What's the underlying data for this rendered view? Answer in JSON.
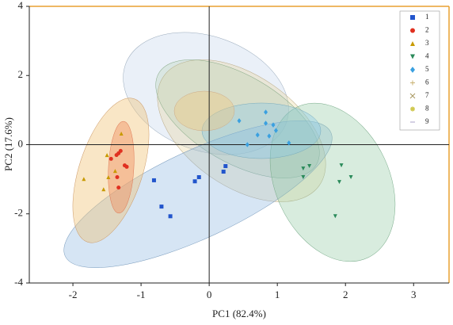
{
  "chart_data": {
    "type": "scatter",
    "xlabel": "PC1 (82.4%)",
    "ylabel": "PC2 (17.6%)",
    "xlim": [
      -2.64,
      3.52
    ],
    "ylim": [
      -4,
      4
    ],
    "xticks": [
      -2,
      -1,
      0,
      1,
      2,
      3
    ],
    "yticks": [
      -4,
      -2,
      0,
      2,
      4
    ],
    "series": [
      {
        "name": "1",
        "color": "#2255cc",
        "marker": "square",
        "x": [
          -0.81,
          -0.21,
          -0.15,
          -0.7,
          -0.57,
          0.21,
          0.24
        ],
        "y": [
          -1.03,
          -1.06,
          -0.94,
          -1.79,
          -2.07,
          -0.78,
          -0.62
        ]
      },
      {
        "name": "2",
        "color": "#e03020",
        "marker": "circle",
        "x": [
          -1.33,
          -1.36,
          -1.3,
          -1.44,
          -1.24,
          -1.21,
          -1.35,
          -1.33
        ],
        "y": [
          -0.25,
          -0.3,
          -0.18,
          -0.41,
          -0.6,
          -0.64,
          -0.94,
          -1.24
        ]
      },
      {
        "name": "3",
        "color": "#c89a00",
        "marker": "triangle",
        "x": [
          -1.84,
          -1.55,
          -1.48,
          -1.38,
          -1.5,
          -1.29
        ],
        "y": [
          -0.99,
          -1.29,
          -0.94,
          -0.76,
          -0.3,
          0.32
        ]
      },
      {
        "name": "4",
        "color": "#2a8a5a",
        "marker": "triangle-down",
        "x": [
          1.38,
          1.47,
          1.38,
          1.94,
          2.08,
          1.91,
          1.85
        ],
        "y": [
          -0.69,
          -0.62,
          -0.94,
          -0.6,
          -0.94,
          -1.08,
          -2.07
        ]
      },
      {
        "name": "5",
        "color": "#3aa0e0",
        "marker": "diamond",
        "x": [
          0.44,
          0.83,
          0.83,
          0.94,
          0.98,
          0.88,
          0.71,
          0.56,
          1.17
        ],
        "y": [
          0.69,
          0.94,
          0.62,
          0.57,
          0.41,
          0.25,
          0.28,
          0,
          0.05
        ]
      },
      {
        "name": "6",
        "color": "#c8b070",
        "marker": "plus",
        "x": [],
        "y": []
      },
      {
        "name": "7",
        "color": "#a89860",
        "marker": "cross",
        "x": [],
        "y": []
      },
      {
        "name": "8",
        "color": "#d0c850",
        "marker": "star",
        "x": [],
        "y": []
      },
      {
        "name": "9",
        "color": "#a8a0c8",
        "marker": "dash",
        "x": [],
        "y": []
      }
    ]
  }
}
